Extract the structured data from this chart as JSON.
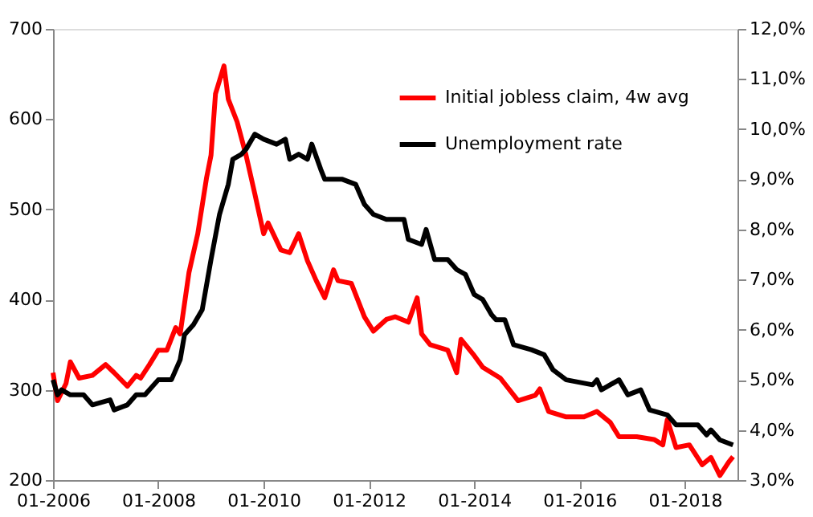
{
  "chart_data": {
    "type": "line",
    "xlim": [
      "2006-01",
      "2019-01"
    ],
    "xticks": [
      {
        "value": "2006-01",
        "label": "01-2006"
      },
      {
        "value": "2008-01",
        "label": "01-2008"
      },
      {
        "value": "2010-01",
        "label": "01-2010"
      },
      {
        "value": "2012-01",
        "label": "01-2012"
      },
      {
        "value": "2014-01",
        "label": "01-2014"
      },
      {
        "value": "2016-01",
        "label": "01-2016"
      },
      {
        "value": "2018-01",
        "label": "01-2018"
      }
    ],
    "ylim": [
      200,
      700
    ],
    "yticks": [
      200,
      300,
      400,
      500,
      600,
      700
    ],
    "y2lim": [
      3,
      12
    ],
    "y2ticks": [
      {
        "value": 3,
        "label": "3,0%"
      },
      {
        "value": 4,
        "label": "4,0%"
      },
      {
        "value": 5,
        "label": "5,0%"
      },
      {
        "value": 6,
        "label": "6,0%"
      },
      {
        "value": 7,
        "label": "7,0%"
      },
      {
        "value": 8,
        "label": "8,0%"
      },
      {
        "value": 9,
        "label": "9,0%"
      },
      {
        "value": 10,
        "label": "10,0%"
      },
      {
        "value": 11,
        "label": "11,0%"
      },
      {
        "value": 12,
        "label": "12,0%"
      }
    ],
    "grid": false,
    "legend": "top right",
    "marker": "none",
    "line_style": "solid",
    "series": [
      {
        "name": "Initial jobless claim, 4w avg",
        "color": "#ff0000",
        "x": [
          "2006-01",
          "2006-02",
          "2006-04",
          "2006-05",
          "2006-07",
          "2006-10",
          "2007-01",
          "2007-03",
          "2007-06",
          "2007-08",
          "2007-09",
          "2007-11",
          "2008-01",
          "2008-03",
          "2008-05",
          "2008-06",
          "2008-08",
          "2008-10",
          "2008-12",
          "2009-01",
          "2009-02",
          "2009-04",
          "2009-05",
          "2009-07",
          "2009-09",
          "2009-11",
          "2010-01",
          "2010-02",
          "2010-05",
          "2010-07",
          "2010-09",
          "2010-11",
          "2011-01",
          "2011-03",
          "2011-05",
          "2011-06",
          "2011-09",
          "2011-12",
          "2012-02",
          "2012-05",
          "2012-07",
          "2012-10",
          "2012-12",
          "2013-01",
          "2013-03",
          "2013-07",
          "2013-09",
          "2013-10",
          "2014-01",
          "2014-03",
          "2014-07",
          "2014-11",
          "2015-03",
          "2015-04",
          "2015-06",
          "2015-10",
          "2016-02",
          "2016-05",
          "2016-08",
          "2016-10",
          "2017-02",
          "2017-06",
          "2017-08",
          "2017-09",
          "2017-11",
          "2018-02",
          "2018-05",
          "2018-07",
          "2018-09",
          "2018-11",
          "2018-12"
        ],
        "values": [
          319,
          288,
          307,
          331,
          313,
          316,
          328,
          319,
          304,
          316,
          313,
          328,
          344,
          344,
          369,
          362,
          430,
          473,
          535,
          560,
          628,
          659,
          622,
          597,
          560,
          517,
          473,
          485,
          455,
          452,
          473,
          443,
          421,
          402,
          433,
          421,
          418,
          381,
          365,
          378,
          381,
          375,
          402,
          362,
          350,
          344,
          319,
          356,
          338,
          325,
          313,
          288,
          294,
          301,
          276,
          270,
          270,
          276,
          264,
          248,
          248,
          245,
          239,
          267,
          236,
          239,
          217,
          225,
          205,
          220,
          226
        ]
      },
      {
        "name": "Unemployment rate",
        "color": "#000000",
        "axis": "y2",
        "x": [
          "2006-01",
          "2006-02",
          "2006-03",
          "2006-05",
          "2006-08",
          "2006-10",
          "2007-02",
          "2007-03",
          "2007-06",
          "2007-08",
          "2007-10",
          "2008-01",
          "2008-04",
          "2008-06",
          "2008-07",
          "2008-09",
          "2008-11",
          "2009-01",
          "2009-03",
          "2009-05",
          "2009-06",
          "2009-08",
          "2009-09",
          "2009-11",
          "2010-01",
          "2010-04",
          "2010-06",
          "2010-07",
          "2010-09",
          "2010-11",
          "2010-12",
          "2011-02",
          "2011-03",
          "2011-07",
          "2011-10",
          "2011-12",
          "2012-02",
          "2012-05",
          "2012-09",
          "2012-10",
          "2013-01",
          "2013-02",
          "2013-04",
          "2013-07",
          "2013-09",
          "2013-11",
          "2014-01",
          "2014-03",
          "2014-05",
          "2014-06",
          "2014-08",
          "2014-10",
          "2015-02",
          "2015-05",
          "2015-07",
          "2015-10",
          "2016-04",
          "2016-05",
          "2016-06",
          "2016-10",
          "2016-12",
          "2017-03",
          "2017-05",
          "2017-09",
          "2017-11",
          "2018-04",
          "2018-06",
          "2018-07",
          "2018-09",
          "2018-12"
        ],
        "values": [
          5.0,
          4.7,
          4.8,
          4.7,
          4.7,
          4.5,
          4.6,
          4.4,
          4.5,
          4.7,
          4.7,
          5.0,
          5.0,
          5.4,
          5.9,
          6.1,
          6.4,
          7.4,
          8.3,
          8.9,
          9.4,
          9.5,
          9.6,
          9.9,
          9.8,
          9.7,
          9.8,
          9.4,
          9.5,
          9.4,
          9.7,
          9.2,
          9.0,
          9.0,
          8.9,
          8.5,
          8.3,
          8.2,
          8.2,
          7.8,
          7.7,
          8.0,
          7.4,
          7.4,
          7.2,
          7.1,
          6.7,
          6.6,
          6.3,
          6.2,
          6.2,
          5.7,
          5.6,
          5.5,
          5.2,
          5.0,
          4.9,
          5.0,
          4.8,
          5.0,
          4.7,
          4.8,
          4.4,
          4.3,
          4.1,
          4.1,
          3.9,
          4.0,
          3.8,
          3.7
        ]
      }
    ]
  }
}
